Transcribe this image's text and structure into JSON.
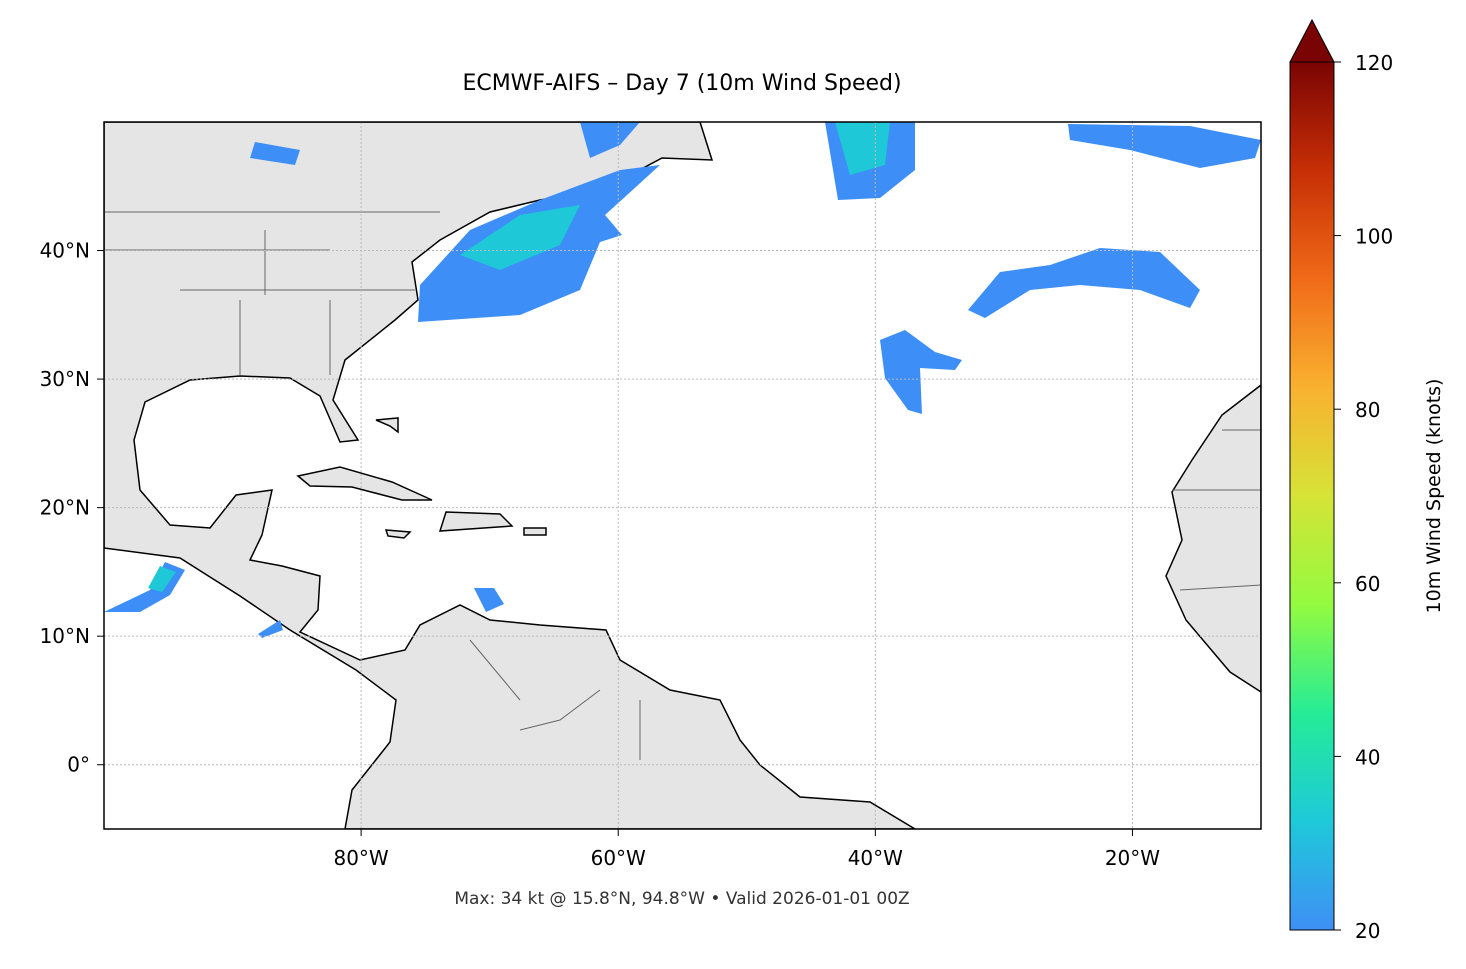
{
  "chart_data": {
    "type": "map",
    "title": "ECMWF-AIFS – Day 7 (10m Wind Speed)",
    "note": "Max: 34 kt @ 15.8°N, 94.8°W • Valid 2026-01-01 00Z",
    "xlim": [
      -100,
      -10
    ],
    "ylim": [
      -5,
      50
    ],
    "xticks": [
      {
        "value": -80,
        "label": "80°W"
      },
      {
        "value": -60,
        "label": "60°W"
      },
      {
        "value": -40,
        "label": "40°W"
      },
      {
        "value": -20,
        "label": "20°W"
      }
    ],
    "yticks": [
      {
        "value": 0,
        "label": "0°"
      },
      {
        "value": 10,
        "label": "10°N"
      },
      {
        "value": 20,
        "label": "20°N"
      },
      {
        "value": 30,
        "label": "30°N"
      },
      {
        "value": 40,
        "label": "40°N"
      }
    ],
    "grid": true,
    "colorbar": {
      "label": "10m Wind Speed (knots)",
      "lim": [
        20,
        120
      ],
      "ticks": [
        20,
        40,
        60,
        80,
        100,
        120
      ],
      "colors": [
        "#3f8ff5",
        "#1ec9d9",
        "#25ec97",
        "#93fb3f",
        "#d6e337",
        "#f9b12f",
        "#f06a18",
        "#c72f06",
        "#7a0403"
      ]
    }
  }
}
